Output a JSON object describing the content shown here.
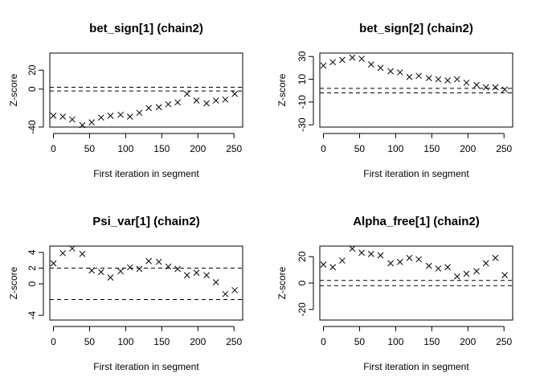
{
  "chart_data": [
    {
      "type": "scatter",
      "title": "bet_sign[1] (chain2)",
      "xlabel": "First iteration in segment",
      "ylabel": "Z-score",
      "xlim": [
        -5,
        262
      ],
      "ylim": [
        -40,
        38
      ],
      "xticks": [
        0,
        50,
        100,
        150,
        200,
        250
      ],
      "yticks": [
        -40,
        0,
        20
      ],
      "yticklabels": [
        "-40",
        "0",
        "20"
      ],
      "hlines": [
        2,
        -2
      ],
      "marker": "x",
      "x": [
        0,
        13,
        26,
        40,
        53,
        66,
        79,
        93,
        106,
        119,
        132,
        146,
        159,
        172,
        185,
        198,
        212,
        225,
        238,
        251
      ],
      "y": [
        -28,
        -29,
        -32,
        -38,
        -35,
        -30,
        -28,
        -27,
        -29,
        -25,
        -20,
        -19,
        -16,
        -14,
        -5,
        -12,
        -15,
        -12,
        -11,
        -5
      ]
    },
    {
      "type": "scatter",
      "title": "bet_sign[2] (chain2)",
      "xlabel": "First iteration in segment",
      "ylabel": "Z-score",
      "xlim": [
        -5,
        262
      ],
      "ylim": [
        -32,
        33
      ],
      "xticks": [
        0,
        50,
        100,
        150,
        200,
        250
      ],
      "yticks": [
        -30,
        -10,
        10,
        30
      ],
      "yticklabels": [
        "-30",
        "-10",
        "10",
        "30"
      ],
      "hlines": [
        2,
        -2
      ],
      "marker": "x",
      "x": [
        0,
        13,
        26,
        40,
        53,
        66,
        79,
        93,
        106,
        119,
        132,
        146,
        159,
        172,
        185,
        198,
        212,
        225,
        238,
        251
      ],
      "y": [
        22,
        25,
        27,
        29,
        28,
        23,
        20,
        17,
        16,
        12,
        13,
        11,
        10,
        9,
        10,
        7,
        5,
        3,
        3,
        1
      ]
    },
    {
      "type": "scatter",
      "title": "Psi_var[1] (chain2)",
      "xlabel": "First iteration in segment",
      "ylabel": "Z-score",
      "xlim": [
        -5,
        262
      ],
      "ylim": [
        -4.6,
        4.8
      ],
      "xticks": [
        0,
        50,
        100,
        150,
        200,
        250
      ],
      "yticks": [
        -4,
        0,
        2,
        4
      ],
      "yticklabels": [
        "-4",
        "0",
        "2",
        "4"
      ],
      "hlines": [
        2,
        -2
      ],
      "marker": "x",
      "x": [
        0,
        13,
        26,
        40,
        53,
        66,
        79,
        93,
        106,
        119,
        132,
        146,
        159,
        172,
        185,
        198,
        212,
        225,
        238,
        251
      ],
      "y": [
        2.6,
        3.9,
        4.5,
        3.8,
        1.7,
        1.5,
        0.8,
        1.6,
        2.1,
        1.9,
        2.9,
        2.8,
        2.2,
        1.9,
        1.1,
        1.4,
        1.1,
        0.2,
        -1.3,
        -0.8
      ]
    },
    {
      "type": "scatter",
      "title": "Alpha_free[1] (chain2)",
      "xlabel": "First iteration in segment",
      "ylabel": "Z-score",
      "xlim": [
        -5,
        262
      ],
      "ylim": [
        -28,
        28
      ],
      "xticks": [
        0,
        50,
        100,
        150,
        200,
        250
      ],
      "yticks": [
        -20,
        0,
        20
      ],
      "yticklabels": [
        "-20",
        "0",
        "20"
      ],
      "hlines": [
        2,
        -2
      ],
      "marker": "x",
      "x": [
        0,
        13,
        26,
        40,
        53,
        66,
        79,
        93,
        106,
        119,
        132,
        146,
        159,
        172,
        185,
        198,
        212,
        225,
        238,
        251
      ],
      "y": [
        14,
        12,
        17,
        26,
        23,
        22,
        21,
        15,
        16,
        19,
        18,
        13,
        11,
        12,
        5,
        7,
        9,
        15,
        19,
        6
      ]
    }
  ]
}
